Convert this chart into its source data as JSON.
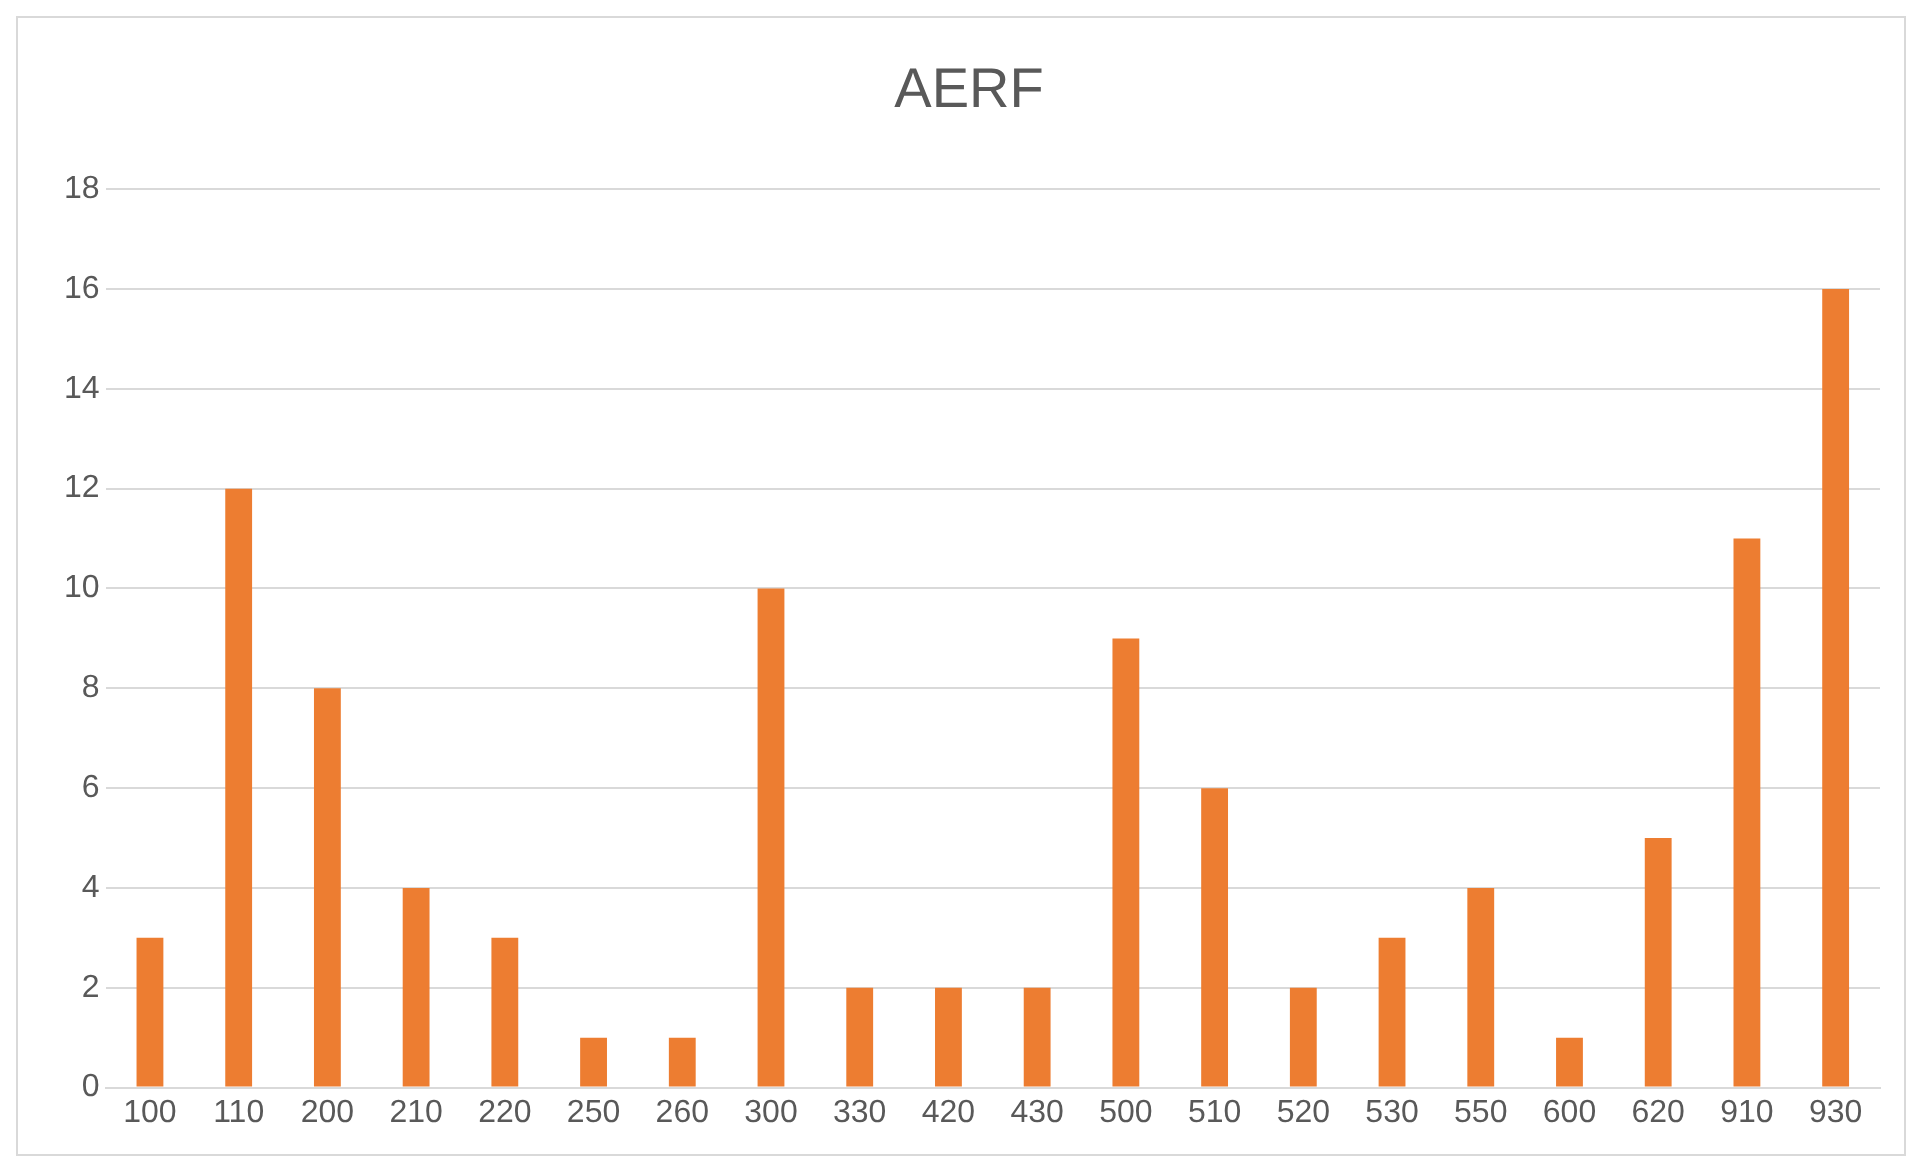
{
  "chart_data": {
    "type": "bar",
    "title": "AERF",
    "categories": [
      "100",
      "110",
      "200",
      "210",
      "220",
      "250",
      "260",
      "300",
      "330",
      "420",
      "430",
      "500",
      "510",
      "520",
      "530",
      "550",
      "600",
      "620",
      "910",
      "930"
    ],
    "values": [
      3,
      12,
      8,
      4,
      3,
      1,
      1,
      10,
      2,
      2,
      2,
      9,
      6,
      2,
      3,
      4,
      1,
      5,
      11,
      16
    ],
    "color": "#ed7d31",
    "ylim": [
      0,
      18
    ],
    "yticks": [
      0,
      2,
      4,
      6,
      8,
      10,
      12,
      14,
      16,
      18
    ],
    "grid": "y",
    "legend": false
  }
}
